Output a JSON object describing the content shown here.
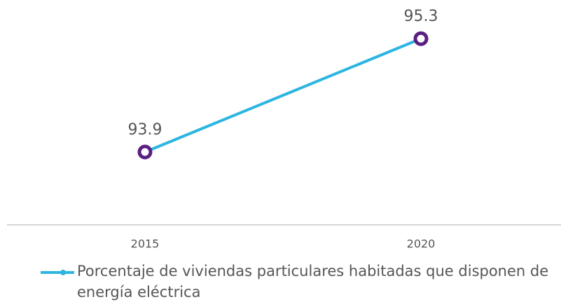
{
  "chart_data": {
    "type": "line",
    "categories": [
      "2015",
      "2020"
    ],
    "series": [
      {
        "name": "Porcentaje de viviendas particulares habitadas que disponen de energía eléctrica",
        "color": "#2cb5e0",
        "marker_color": "#5b1f7f",
        "values": [
          93.9,
          95.3
        ]
      }
    ],
    "ylim": [
      93,
      95.7
    ],
    "data_labels": true,
    "legend": "bottom-left"
  }
}
